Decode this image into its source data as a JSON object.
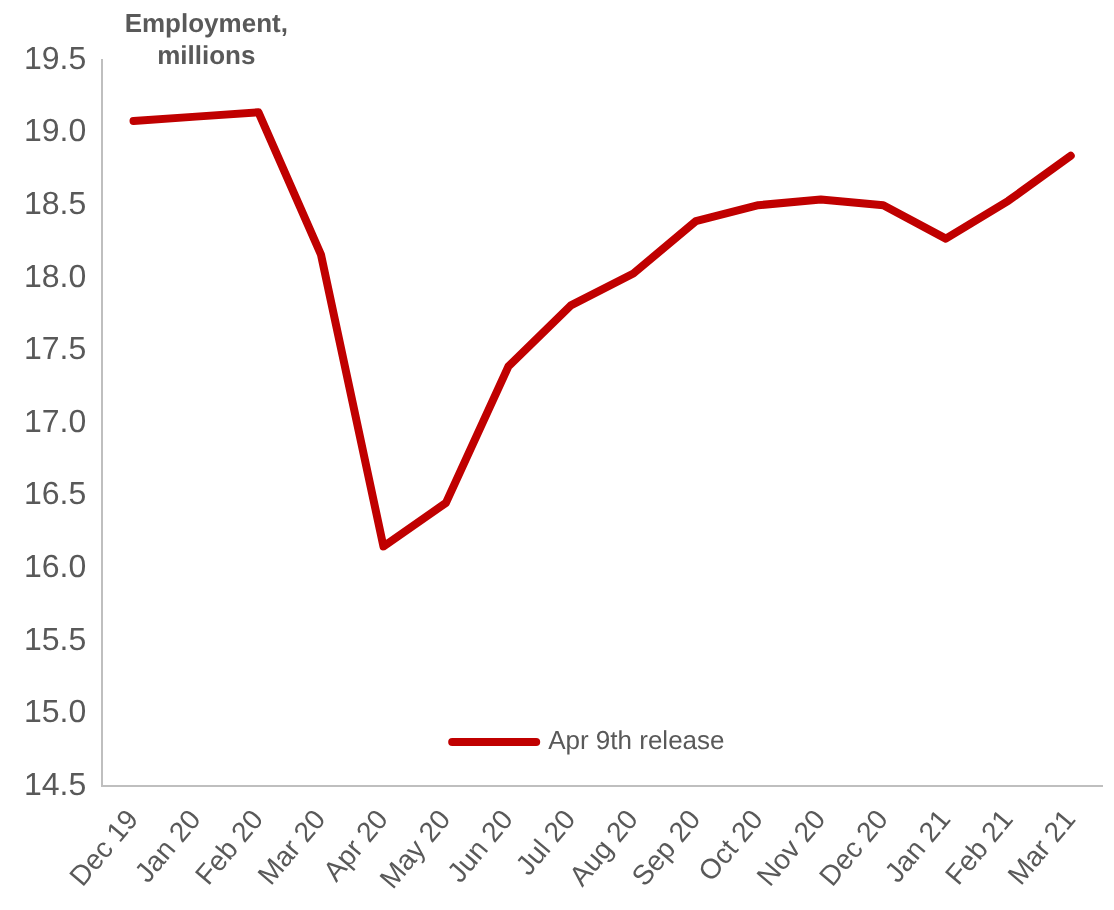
{
  "chart_data": {
    "type": "line",
    "title": "Employment, millions",
    "categories": [
      "Dec 19",
      "Jan 20",
      "Feb 20",
      "Mar 20",
      "Apr 20",
      "May 20",
      "Jun 20",
      "Jul 20",
      "Aug 20",
      "Sep 20",
      "Oct 20",
      "Nov 20",
      "Dec 20",
      "Jan 21",
      "Feb 21",
      "Mar 21"
    ],
    "series": [
      {
        "name": "Apr 9th release",
        "color": "#c00000",
        "values": [
          19.08,
          19.11,
          19.14,
          18.16,
          16.15,
          16.45,
          17.39,
          17.81,
          18.03,
          18.39,
          18.5,
          18.54,
          18.5,
          18.27,
          18.53,
          18.84
        ]
      }
    ],
    "ylim": [
      14.5,
      19.5
    ],
    "yticks": [
      14.5,
      {
        "value": 15,
        "label": "15.0"
      },
      15.5,
      {
        "value": 16,
        "label": "16.0"
      },
      16.5,
      {
        "value": 17,
        "label": "17.0"
      },
      17.5,
      {
        "value": 18,
        "label": "18.0"
      },
      18.5,
      {
        "value": 19,
        "label": "19.0"
      },
      19.5
    ],
    "grid": false,
    "legend": "bottom",
    "marker": "none",
    "line_style": "solid"
  }
}
